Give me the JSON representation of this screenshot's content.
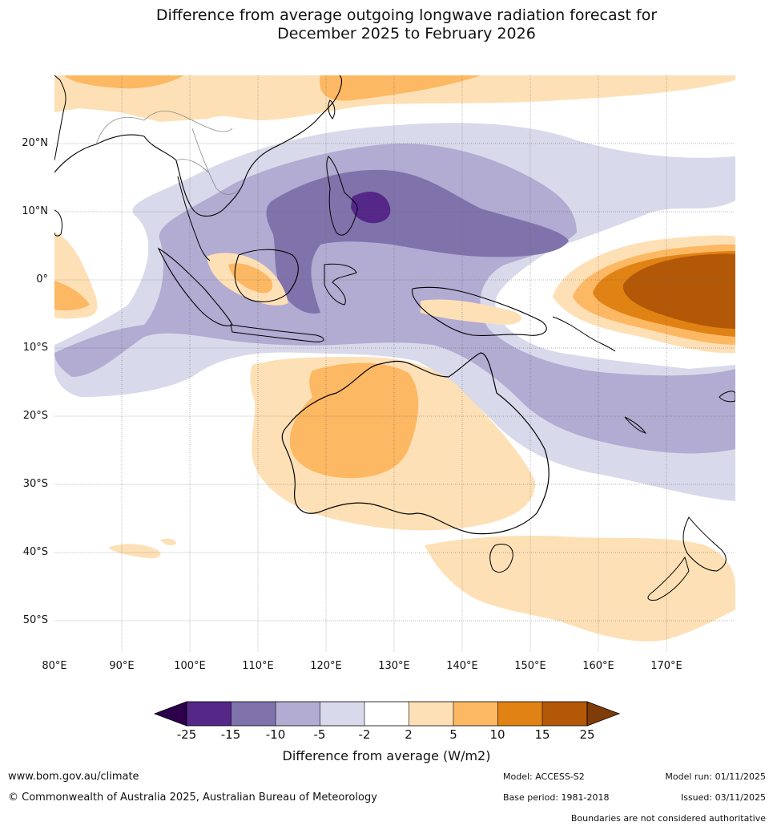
{
  "title": {
    "line1": "Difference from average outgoing longwave radiation forecast for",
    "line2": "December 2025 to February 2026"
  },
  "map": {
    "lat_labels": [
      "20°N",
      "10°N",
      "0°",
      "10°S",
      "20°S",
      "30°S",
      "40°S",
      "50°S"
    ],
    "lon_labels": [
      "80°E",
      "90°E",
      "100°E",
      "110°E",
      "120°E",
      "130°E",
      "140°E",
      "150°E",
      "160°E",
      "170°E"
    ],
    "colors": {
      "p25": "#2d004b",
      "p15_25": "#542788",
      "p10_15": "#8073ac",
      "p5_10": "#b2abd2",
      "p2_5": "#d8daeb",
      "neutral": "#ffffff",
      "o2_5": "#fee0b6",
      "o5_10": "#fdb863",
      "o10_15": "#e08214",
      "o15_25": "#b35806",
      "o25": "#7f3b08",
      "land_outline": "#000000",
      "border": "#888888"
    }
  },
  "colorbar": {
    "ticks": [
      "-25",
      "-15",
      "-10",
      "-5",
      "-2",
      "2",
      "5",
      "10",
      "15",
      "25"
    ],
    "label": "Difference from average (W/m2)"
  },
  "footer": {
    "website": "www.bom.gov.au/climate",
    "copyright": "© Commonwealth of Australia 2025, Australian Bureau of Meteorology",
    "model": "Model: ACCESS-S2",
    "base_period": "Base period: 1981-2018",
    "model_run": "Model run: 01/11/2025",
    "issued": "Issued: 03/11/2025",
    "disclaimer": "Boundaries are not considered authoritative"
  }
}
